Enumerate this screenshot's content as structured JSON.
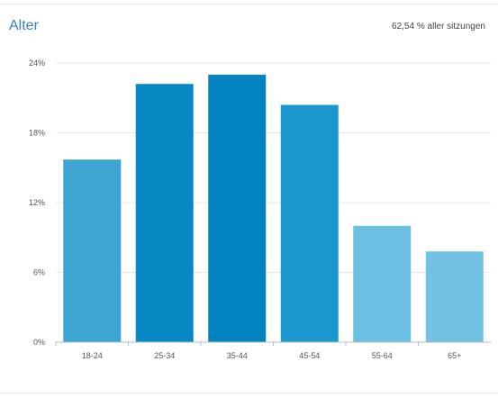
{
  "header": {
    "title": "Alter",
    "sessions_note": "62,54 % aller sitzungen"
  },
  "chart_data": {
    "type": "bar",
    "title": "Alter",
    "categories": [
      "18-24",
      "25-34",
      "35-44",
      "45-54",
      "55-64",
      "65+"
    ],
    "values": [
      15.7,
      22.2,
      23.0,
      20.4,
      10.0,
      7.8
    ],
    "value_unit": "%",
    "ylim": [
      0,
      24
    ],
    "yticks": [
      0,
      6,
      12,
      18,
      24
    ],
    "ytick_labels": [
      "0%",
      "6%",
      "12%",
      "18%",
      "24%"
    ],
    "grid": true,
    "colors": [
      "#3da5d2",
      "#0789c4",
      "#0384c0",
      "#1898cd",
      "#6cbfe1",
      "#73c2e3"
    ]
  }
}
